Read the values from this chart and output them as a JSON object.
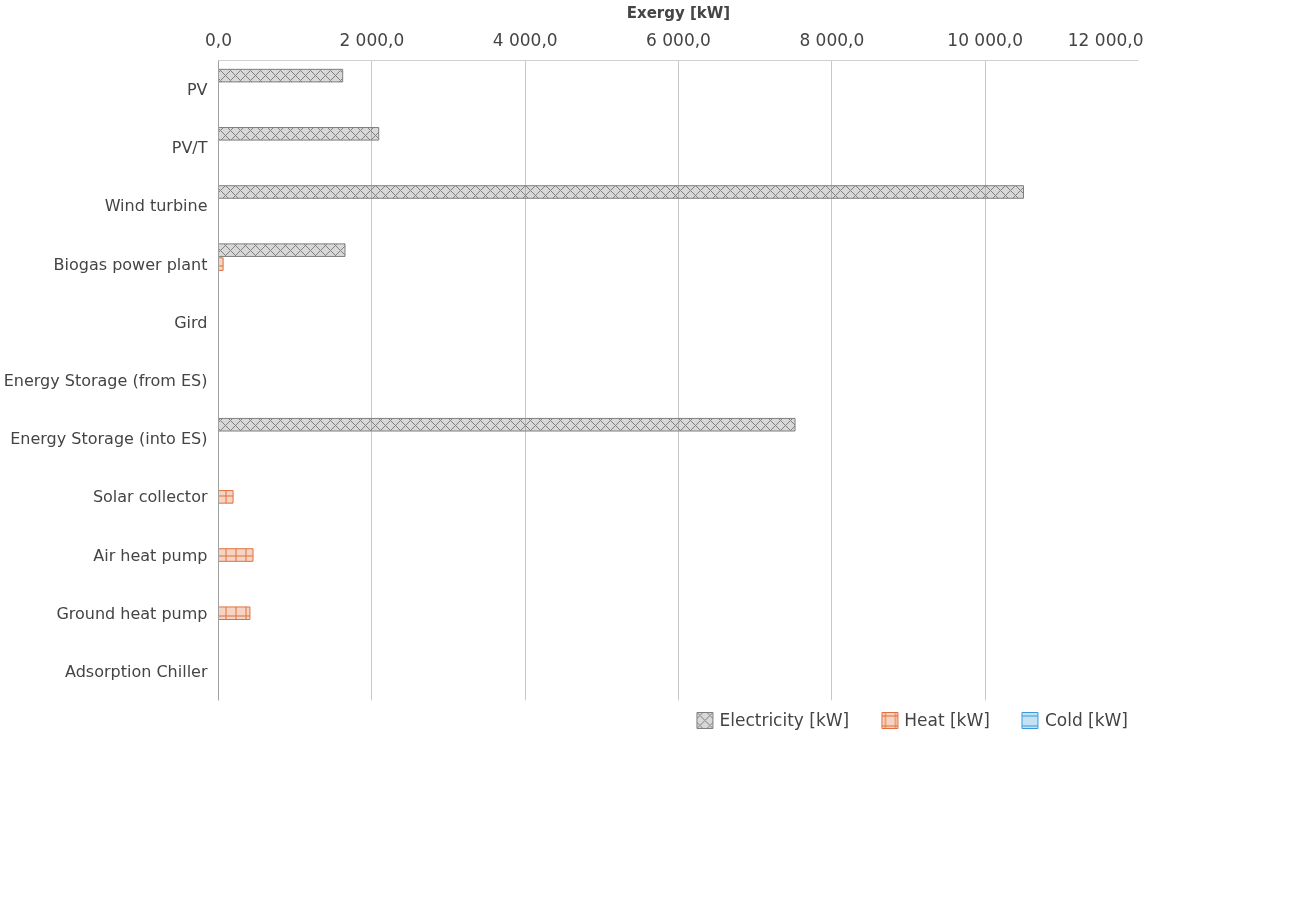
{
  "chart_data": {
    "type": "bar",
    "orientation": "horizontal",
    "xlabel": "Exergy [kW]",
    "categories": [
      "PV",
      "PV/T",
      "Wind turbine",
      "Biogas power plant",
      "Gird",
      "Energy Storage (from ES)",
      "Energy Storage (into ES)",
      "Solar collector",
      "Air heat pump",
      "Ground heat pump",
      "Adsorption Chiller"
    ],
    "series": [
      {
        "name": "Electricity [kW]",
        "color": "#7f7f7f",
        "values": [
          1620,
          2090,
          10500,
          1650,
          0,
          0,
          7520,
          0,
          0,
          0,
          0
        ]
      },
      {
        "name": "Heat [kW]",
        "color": "#e0703c",
        "values": [
          0,
          0,
          0,
          60,
          0,
          0,
          0,
          190,
          450,
          410,
          0
        ]
      },
      {
        "name": "Cold [kW]",
        "color": "#3a9ad9",
        "values": [
          0,
          0,
          0,
          0,
          0,
          0,
          0,
          0,
          0,
          0,
          0
        ]
      }
    ],
    "xlim": [
      0,
      12000
    ],
    "xticks": [
      {
        "value": 0,
        "label": "0,0"
      },
      {
        "value": 2000,
        "label": "2 000,0"
      },
      {
        "value": 4000,
        "label": "4 000,0"
      },
      {
        "value": 6000,
        "label": "6 000,0"
      },
      {
        "value": 8000,
        "label": "8 000,0"
      },
      {
        "value": 10000,
        "label": "10 000,0"
      },
      {
        "value": 12000,
        "label": "12 000,0"
      }
    ],
    "grid": "x",
    "legend": "bottom"
  }
}
